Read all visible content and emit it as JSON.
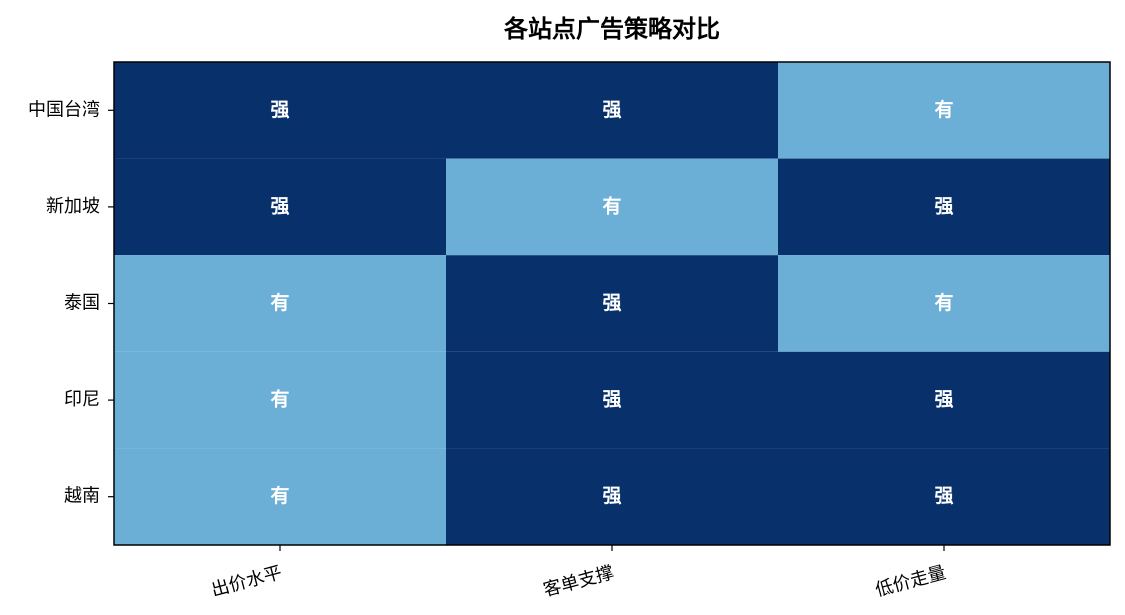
{
  "chart_data": {
    "type": "heatmap",
    "title": "各站点广告策略对比",
    "rows": [
      "中国台湾",
      "新加坡",
      "泰国",
      "印尼",
      "越南"
    ],
    "columns": [
      "出价水平",
      "客单支撑",
      "低价走量"
    ],
    "cells": [
      [
        "强",
        "强",
        "有"
      ],
      [
        "强",
        "有",
        "强"
      ],
      [
        "有",
        "强",
        "有"
      ],
      [
        "有",
        "强",
        "强"
      ],
      [
        "有",
        "强",
        "强"
      ]
    ],
    "cell_colors": {
      "强": "#08306b",
      "有": "#6baed6"
    },
    "title_color": "#1f4e79"
  }
}
